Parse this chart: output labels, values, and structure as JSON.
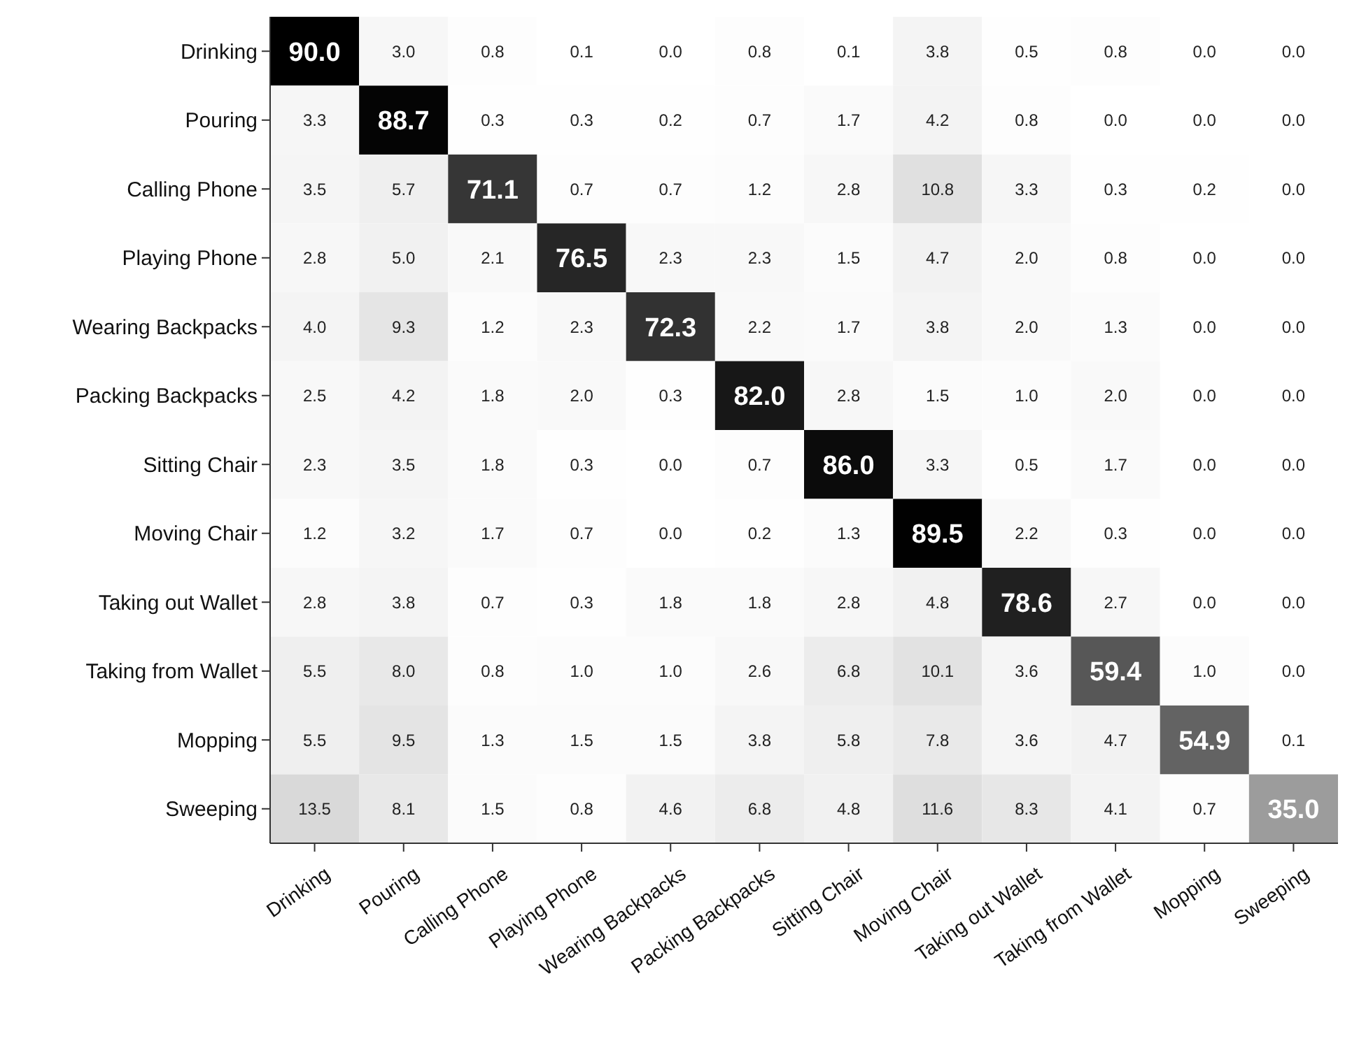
{
  "chart_data": {
    "type": "heatmap",
    "categories": [
      "Drinking",
      "Pouring",
      "Calling Phone",
      "Playing Phone",
      "Wearing Backpacks",
      "Packing Backpacks",
      "Sitting Chair",
      "Moving Chair",
      "Taking out Wallet",
      "Taking from Wallet",
      "Mopping",
      "Sweeping"
    ],
    "y_categories": [
      "Drinking",
      "Pouring",
      "Calling Phone",
      "Playing Phone",
      "Wearing Backpacks",
      "Packing Backpacks",
      "Sitting Chair",
      "Moving Chair",
      "Taking out Wallet",
      "Taking from Wallet",
      "Mopping",
      "Sweeping"
    ],
    "cells": [
      [
        90.0,
        3.0,
        0.8,
        0.1,
        0.0,
        0.8,
        0.1,
        3.8,
        0.5,
        0.8,
        0.0,
        0.0
      ],
      [
        3.3,
        88.7,
        0.3,
        0.3,
        0.2,
        0.7,
        1.7,
        4.2,
        0.8,
        0.0,
        0.0,
        0.0
      ],
      [
        3.5,
        5.7,
        71.1,
        0.7,
        0.7,
        1.2,
        2.8,
        10.8,
        3.3,
        0.3,
        0.2,
        0.0
      ],
      [
        2.8,
        5.0,
        2.1,
        76.5,
        2.3,
        2.3,
        1.5,
        4.7,
        2.0,
        0.8,
        0.0,
        0.0
      ],
      [
        4.0,
        9.3,
        1.2,
        2.3,
        72.3,
        2.2,
        1.7,
        3.8,
        2.0,
        1.3,
        0.0,
        0.0
      ],
      [
        2.5,
        4.2,
        1.8,
        2.0,
        0.3,
        82.0,
        2.8,
        1.5,
        1.0,
        2.0,
        0.0,
        0.0
      ],
      [
        2.3,
        3.5,
        1.8,
        0.3,
        0.0,
        0.7,
        86.0,
        3.3,
        0.5,
        1.7,
        0.0,
        0.0
      ],
      [
        1.2,
        3.2,
        1.7,
        0.7,
        0.0,
        0.2,
        1.3,
        89.5,
        2.2,
        0.3,
        0.0,
        0.0
      ],
      [
        2.8,
        3.8,
        0.7,
        0.3,
        1.8,
        1.8,
        2.8,
        4.8,
        78.6,
        2.7,
        0.0,
        0.0
      ],
      [
        5.5,
        8.0,
        0.8,
        1.0,
        1.0,
        2.6,
        6.8,
        10.1,
        3.6,
        59.4,
        1.0,
        0.0
      ],
      [
        5.5,
        9.5,
        1.3,
        1.5,
        1.5,
        3.8,
        5.8,
        7.8,
        3.6,
        4.7,
        54.9,
        0.1
      ],
      [
        13.5,
        8.1,
        1.5,
        0.8,
        4.6,
        6.8,
        4.8,
        11.6,
        8.3,
        4.1,
        0.7,
        35.0
      ]
    ],
    "cell_labels": [
      [
        "90.0",
        "3.0",
        "0.8",
        "0.1",
        "0.0",
        "0.8",
        "0.1",
        "3.8",
        "0.5",
        "0.8",
        "0.0",
        "0.0"
      ],
      [
        "3.3",
        "88.7",
        "0.3",
        "0.3",
        "0.2",
        "0.7",
        "1.7",
        "4.2",
        "0.8",
        "0.0",
        "0.0",
        "0.0"
      ],
      [
        "3.5",
        "5.7",
        "71.1",
        "0.7",
        "0.7",
        "1.2",
        "2.8",
        "10.8",
        "3.3",
        "0.3",
        "0.2",
        "0.0"
      ],
      [
        "2.8",
        "5.0",
        "2.1",
        "76.5",
        "2.3",
        "2.3",
        "1.5",
        "4.7",
        "2.0",
        "0.8",
        "0.0",
        "0.0"
      ],
      [
        "4.0",
        "9.3",
        "1.2",
        "2.3",
        "72.3",
        "2.2",
        "1.7",
        "3.8",
        "2.0",
        "1.3",
        "0.0",
        "0.0"
      ],
      [
        "2.5",
        "4.2",
        "1.8",
        "2.0",
        "0.3",
        "82.0",
        "2.8",
        "1.5",
        "1.0",
        "2.0",
        "0.0",
        "0.0"
      ],
      [
        "2.3",
        "3.5",
        "1.8",
        "0.3",
        "0.0",
        "0.7",
        "86.0",
        "3.3",
        "0.5",
        "1.7",
        "0.0",
        "0.0"
      ],
      [
        "1.2",
        "3.2",
        "1.7",
        "0.7",
        "0.0",
        "0.2",
        "1.3",
        "89.5",
        "2.2",
        "0.3",
        "0.0",
        "0.0"
      ],
      [
        "2.8",
        "3.8",
        "0.7",
        "0.3",
        "1.8",
        "1.8",
        "2.8",
        "4.8",
        "78.6",
        "2.7",
        "0.0",
        "0.0"
      ],
      [
        "5.5",
        "8.0",
        "0.8",
        "1.0",
        "1.0",
        "2.6",
        "6.8",
        "10.1",
        "3.6",
        "59.4",
        "1.0",
        "0.0"
      ],
      [
        "5.5",
        "9.5",
        "1.3",
        "1.5",
        "1.5",
        "3.8",
        "5.8",
        "7.8",
        "3.6",
        "4.7",
        "54.9",
        "0.1"
      ],
      [
        "13.5",
        "8.1",
        "1.5",
        "0.8",
        "4.6",
        "6.8",
        "4.8",
        "11.6",
        "8.3",
        "4.1",
        "0.7",
        "35.0"
      ]
    ]
  }
}
